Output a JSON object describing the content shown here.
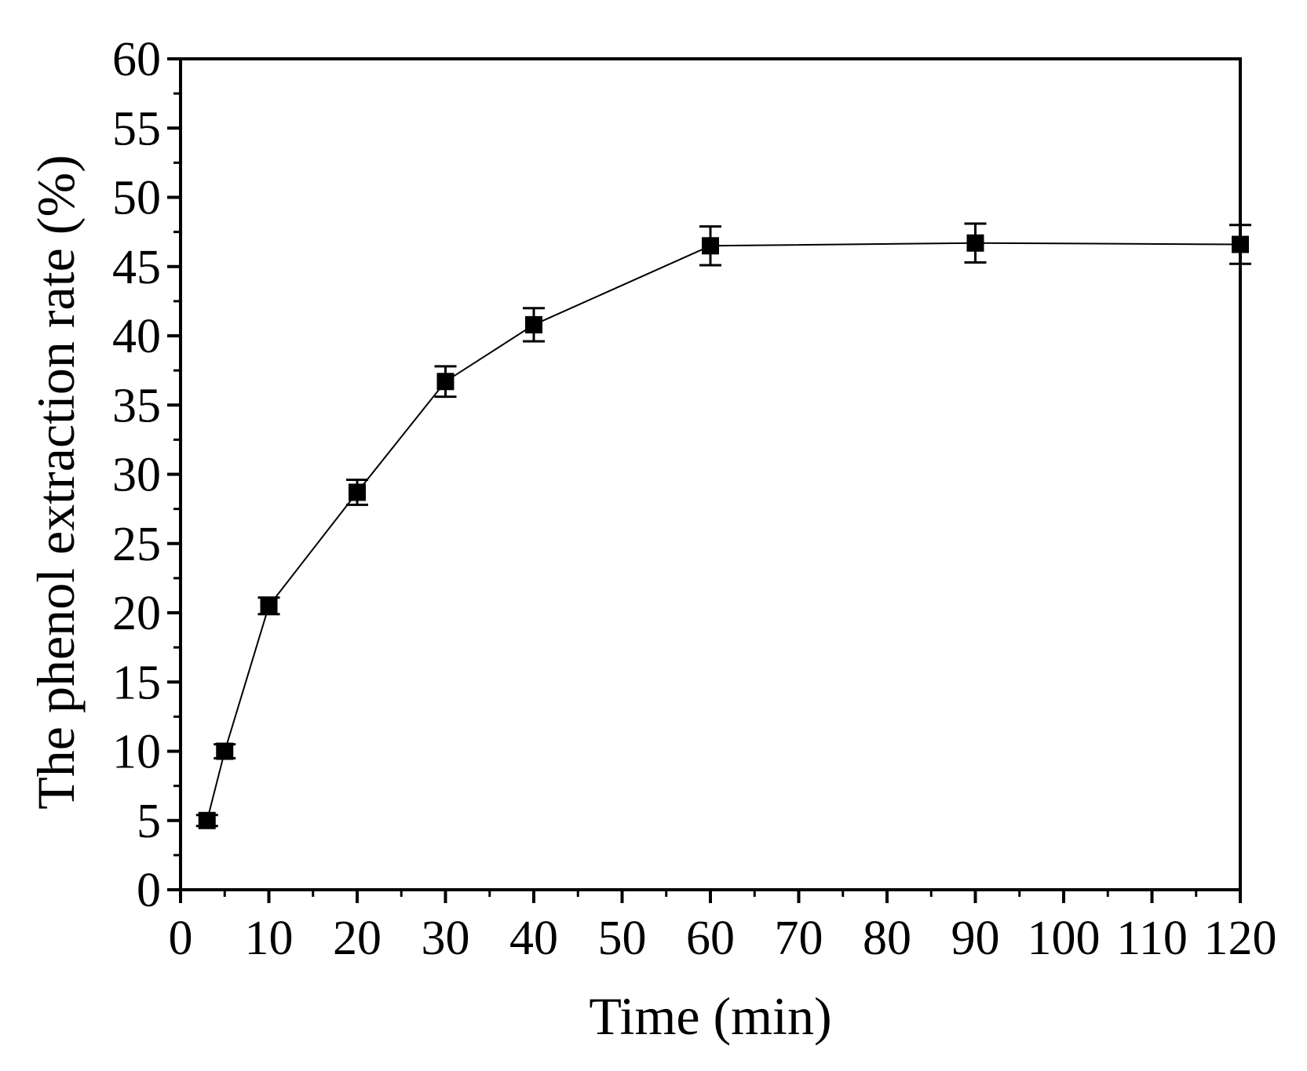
{
  "chart_data": {
    "type": "line",
    "xlabel": "Time (min)",
    "ylabel": "The phenol extraction rate (%)",
    "xlim": [
      0,
      120
    ],
    "ylim": [
      0,
      60
    ],
    "x_ticks": [
      0,
      10,
      20,
      30,
      40,
      50,
      60,
      70,
      80,
      90,
      100,
      110,
      120
    ],
    "y_ticks": [
      0,
      5,
      10,
      15,
      20,
      25,
      30,
      35,
      40,
      45,
      50,
      55,
      60
    ],
    "grid": false,
    "legend": "none",
    "marker": "filled-square",
    "line_color": "#000000",
    "series": [
      {
        "x": [
          3,
          5,
          10,
          20,
          30,
          40,
          60,
          90,
          120
        ],
        "y": [
          5.0,
          10.0,
          20.5,
          28.7,
          36.7,
          40.8,
          46.5,
          46.7,
          46.6
        ],
        "error": [
          0.4,
          0.5,
          0.6,
          0.9,
          1.1,
          1.2,
          1.4,
          1.4,
          1.4
        ]
      }
    ]
  }
}
